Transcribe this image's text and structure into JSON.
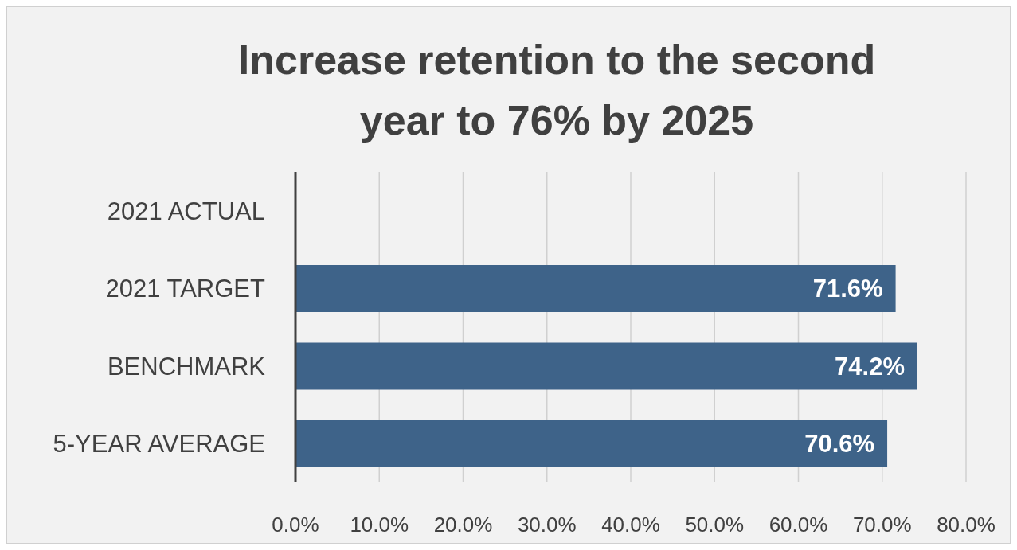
{
  "chart_data": {
    "type": "bar",
    "orientation": "horizontal",
    "title": "Increase retention to the second year to 76% by 2025",
    "categories": [
      "2021 ACTUAL",
      "2021 TARGET",
      "BENCHMARK",
      "5-YEAR AVERAGE"
    ],
    "values": [
      null,
      71.6,
      74.2,
      70.6
    ],
    "value_labels": [
      null,
      "71.6%",
      "74.2%",
      "70.6%"
    ],
    "color": "#3e6389",
    "xlim": [
      0,
      80
    ],
    "xticks": [
      {
        "value": 0,
        "label": "0.0%"
      },
      {
        "value": 10,
        "label": "10.0%"
      },
      {
        "value": 20,
        "label": "20.0%"
      },
      {
        "value": 30,
        "label": "30.0%"
      },
      {
        "value": 40,
        "label": "40.0%"
      },
      {
        "value": 50,
        "label": "50.0%"
      },
      {
        "value": 60,
        "label": "60.0%"
      },
      {
        "value": 70,
        "label": "70.0%"
      },
      {
        "value": 80,
        "label": "80.0%"
      }
    ],
    "grid": "x"
  }
}
